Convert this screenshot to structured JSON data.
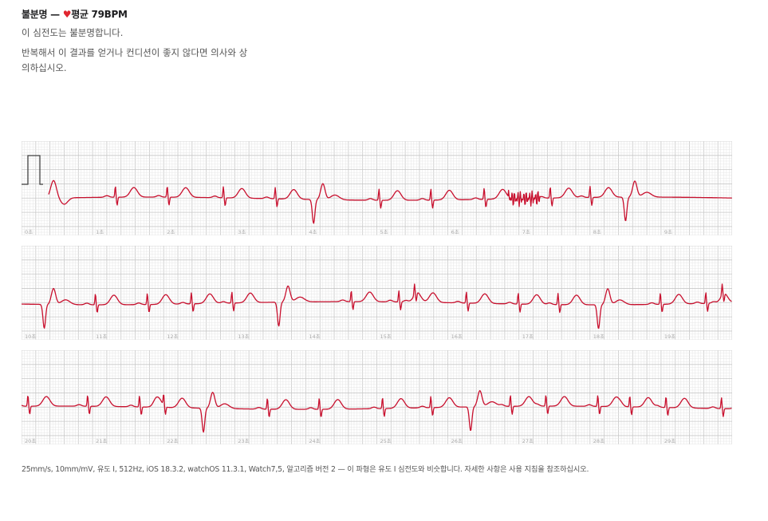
{
  "header": {
    "classification": "불분명",
    "separator": "—",
    "heart_icon": "heart-icon",
    "average_label": "평균 79BPM",
    "summary": "이 심전도는 불분명합니다.",
    "advice": "반복해서 이 결과를 얻거나 컨디션이 좋지 않다면 의사와 상의하십시오."
  },
  "footer": "25mm/s, 10mm/mV, 유도 I, 512Hz, iOS 18.3.2, watchOS 11.3.1, Watch7,5, 알고리즘 버전 2 — 이 파형은 유도 I 심전도와 비슷합니다. 자세한 사항은 사용 지침을 참조하십시오.",
  "colors": {
    "trace": "#c8102e",
    "grid_major": "#c8c8c8",
    "grid_minor": "#e6e6e6",
    "calibration": "#444444"
  },
  "chart_data": {
    "type": "line",
    "xlabel": "",
    "ylabel": "",
    "grid": true,
    "strips": [
      {
        "xlim": [
          0,
          10
        ],
        "tick_labels": [
          "0초",
          "1초",
          "2초",
          "3초",
          "4초",
          "5초",
          "6초",
          "7초",
          "8초",
          "9초"
        ],
        "beats": [
          1.32,
          2.05,
          2.84,
          3.57,
          4.11,
          5.03,
          5.76,
          6.51,
          7.44,
          8.0,
          8.5
        ],
        "ectopic": [
          4.11,
          8.5
        ],
        "noise": [
          6.85,
          7.3
        ]
      },
      {
        "xlim": [
          10,
          20
        ],
        "tick_labels": [
          "10초",
          "11초",
          "12초",
          "13초",
          "14초",
          "15초",
          "16초",
          "17초",
          "18초",
          "19초"
        ],
        "beats": [
          10.32,
          11.04,
          11.77,
          12.39,
          12.96,
          13.62,
          14.64,
          15.31,
          15.53,
          16.26,
          16.99,
          17.55,
          18.12,
          18.99,
          19.63,
          19.86
        ],
        "ectopic": [
          10.32,
          13.62,
          18.12
        ],
        "noise": null
      },
      {
        "xlim": [
          20,
          30
        ],
        "tick_labels": [
          "20초",
          "21초",
          "22초",
          "23초",
          "24초",
          "25초",
          "26초",
          "27초",
          "28초",
          "29초"
        ],
        "beats": [
          20.09,
          20.93,
          21.66,
          22.0,
          22.56,
          23.46,
          24.19,
          25.08,
          25.76,
          26.32,
          26.88,
          27.38,
          28.11,
          28.56,
          29.07,
          29.85
        ],
        "ectopic": [
          22.56,
          26.32
        ],
        "noise": null
      }
    ]
  }
}
